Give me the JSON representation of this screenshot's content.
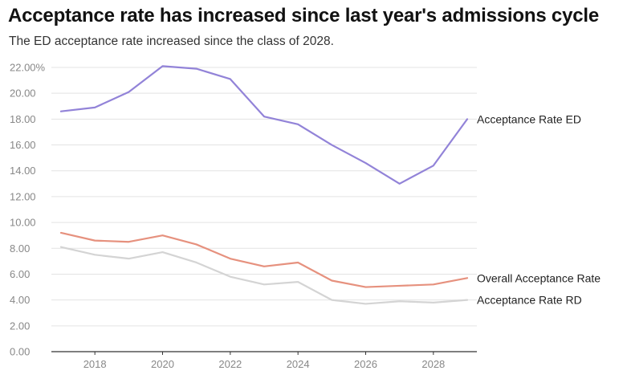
{
  "title": "Acceptance rate has increased since last year's admissions cycle",
  "subtitle": "The ED acceptance rate increased since the class of 2028.",
  "chart_data": {
    "type": "line",
    "title": "Acceptance rate has increased since last year's admissions cycle",
    "subtitle": "The ED acceptance rate increased since the class of 2028.",
    "xlabel": "",
    "ylabel": "",
    "x": [
      2017,
      2018,
      2019,
      2020,
      2021,
      2022,
      2023,
      2024,
      2025,
      2026,
      2027,
      2028,
      2029
    ],
    "xlim": [
      2017,
      2029
    ],
    "ylim": [
      0,
      22
    ],
    "y_ticks": [
      0,
      2,
      4,
      6,
      8,
      10,
      12,
      14,
      16,
      18,
      20,
      22
    ],
    "y_tick_labels": [
      "0.00",
      "2.00",
      "4.00",
      "6.00",
      "8.00",
      "10.00",
      "12.00",
      "14.00",
      "16.00",
      "18.00",
      "20.00",
      "22.00%"
    ],
    "x_ticks": [
      2018,
      2020,
      2022,
      2024,
      2026,
      2028
    ],
    "x_tick_labels": [
      "2018",
      "2020",
      "2022",
      "2024",
      "2026",
      "2028"
    ],
    "grid": "horizontal",
    "legend": "direct labels at line ends",
    "series": [
      {
        "name": "Acceptance Rate ED",
        "color": "#9283d8",
        "values": [
          18.6,
          18.9,
          20.1,
          22.1,
          21.9,
          21.1,
          18.2,
          17.6,
          16.0,
          14.6,
          13.0,
          14.4,
          18.0
        ]
      },
      {
        "name": "Overall Acceptance Rate",
        "color": "#e6917e",
        "values": [
          9.2,
          8.6,
          8.5,
          9.0,
          8.3,
          7.2,
          6.6,
          6.9,
          5.5,
          5.0,
          5.1,
          5.2,
          5.7
        ]
      },
      {
        "name": "Acceptance Rate RD",
        "color": "#d4d4d4",
        "values": [
          8.1,
          7.5,
          7.2,
          7.7,
          6.9,
          5.8,
          5.2,
          5.4,
          4.0,
          3.7,
          3.9,
          3.8,
          4.0
        ]
      }
    ]
  }
}
